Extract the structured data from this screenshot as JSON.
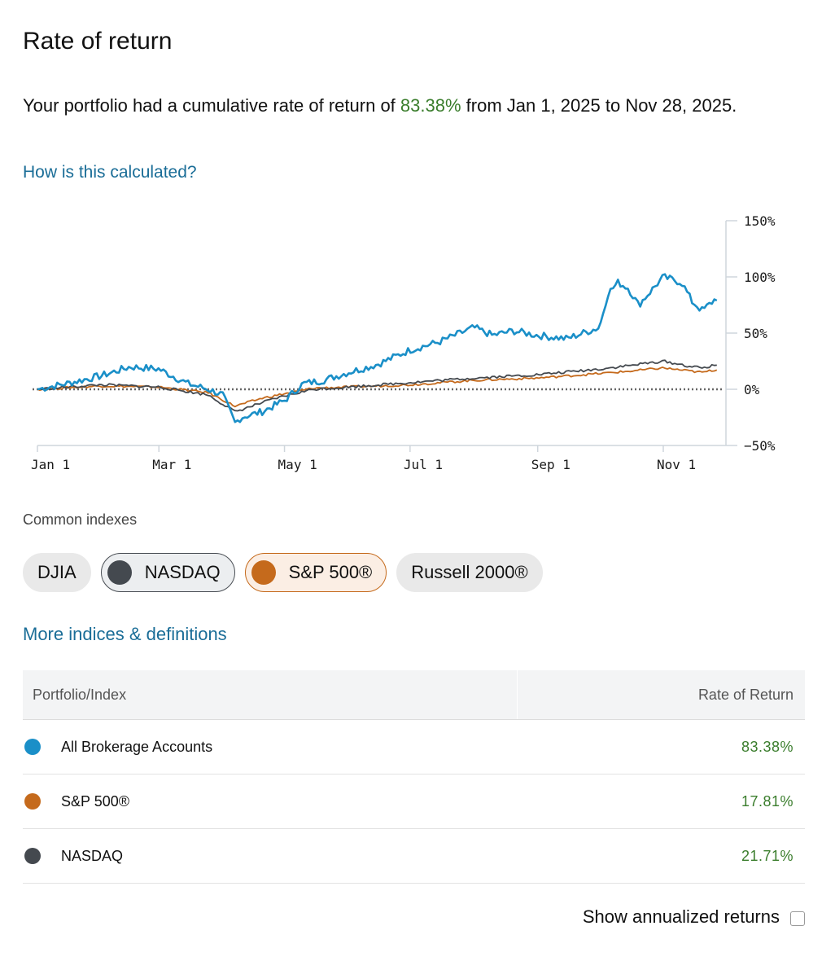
{
  "title": "Rate of return",
  "summary": {
    "prefix": "Your portfolio had a cumulative rate of return of ",
    "pct": "83.38%",
    "suffix": " from Jan 1, 2025 to Nov 28, 2025."
  },
  "how_link": "How is this calculated?",
  "chart_data": {
    "type": "line",
    "x_ticks": [
      "Jan 1",
      "Mar 1",
      "May 1",
      "Jul 1",
      "Sep 1",
      "Nov 1"
    ],
    "y_ticks": [
      "150%",
      "100%",
      "50%",
      "0%",
      "−50%"
    ],
    "ylim": [
      -50,
      150
    ],
    "reference_line": 0,
    "series": [
      {
        "color": "#1a8fc8",
        "x": [
          "Jan 1",
          "Jan 15",
          "Feb 1",
          "Feb 15",
          "Mar 1",
          "Mar 15",
          "Mar 25",
          "Apr 1",
          "Apr 7",
          "Apr 10",
          "Apr 20",
          "May 1",
          "May 10",
          "May 20",
          "Jun 1",
          "Jun 15",
          "Jul 1",
          "Jul 15",
          "Aug 1",
          "Aug 10",
          "Aug 20",
          "Sep 1",
          "Sep 15",
          "Oct 1",
          "Oct 5",
          "Oct 10",
          "Oct 15",
          "Oct 20",
          "Nov 1",
          "Nov 10",
          "Nov 15",
          "Nov 20",
          "Nov 28"
        ],
        "values": [
          0,
          5,
          12,
          20,
          18,
          5,
          0,
          -5,
          -30,
          -25,
          -20,
          -10,
          5,
          8,
          15,
          22,
          35,
          42,
          55,
          48,
          52,
          48,
          45,
          55,
          85,
          95,
          90,
          75,
          100,
          95,
          78,
          70,
          83
        ]
      },
      {
        "color": "#c56a1c",
        "x": [
          "Jan 1",
          "Feb 1",
          "Mar 1",
          "Mar 25",
          "Apr 7",
          "Apr 20",
          "May 1",
          "May 15",
          "Jun 1",
          "Jul 1",
          "Aug 1",
          "Sep 1",
          "Oct 1",
          "Oct 15",
          "Nov 1",
          "Nov 15",
          "Nov 20",
          "Nov 28"
        ],
        "values": [
          0,
          3,
          2,
          -3,
          -15,
          -8,
          -4,
          1,
          2,
          4,
          8,
          10,
          14,
          16,
          19,
          16,
          15,
          18
        ]
      },
      {
        "color": "#44494f",
        "x": [
          "Jan 1",
          "Feb 1",
          "Mar 1",
          "Mar 25",
          "Apr 7",
          "Apr 20",
          "May 1",
          "May 15",
          "Jun 1",
          "Jul 1",
          "Aug 1",
          "Sep 1",
          "Oct 1",
          "Oct 15",
          "Nov 1",
          "Nov 15",
          "Nov 20",
          "Nov 28"
        ],
        "values": [
          0,
          4,
          2,
          -5,
          -20,
          -12,
          -6,
          0,
          2,
          6,
          10,
          13,
          18,
          21,
          25,
          20,
          19,
          22
        ]
      }
    ]
  },
  "common_label": "Common indexes",
  "chips": [
    {
      "label": "DJIA",
      "selected": false,
      "color": ""
    },
    {
      "label": "NASDAQ",
      "selected": true,
      "color": "#44494f"
    },
    {
      "label": "S&P 500®",
      "selected": true,
      "color": "#c56a1c"
    },
    {
      "label": "Russell 2000®",
      "selected": false,
      "color": ""
    }
  ],
  "more_link": "More indices & definitions",
  "table": {
    "headers": [
      "Portfolio/Index",
      "Rate of Return"
    ],
    "rows": [
      {
        "name": "All Brokerage Accounts",
        "value": "83.38%",
        "color": "#1a8fc8"
      },
      {
        "name": "S&P 500®",
        "value": "17.81%",
        "color": "#c56a1c"
      },
      {
        "name": "NASDAQ",
        "value": "21.71%",
        "color": "#44494f"
      }
    ]
  },
  "annualized_label": "Show annualized returns"
}
